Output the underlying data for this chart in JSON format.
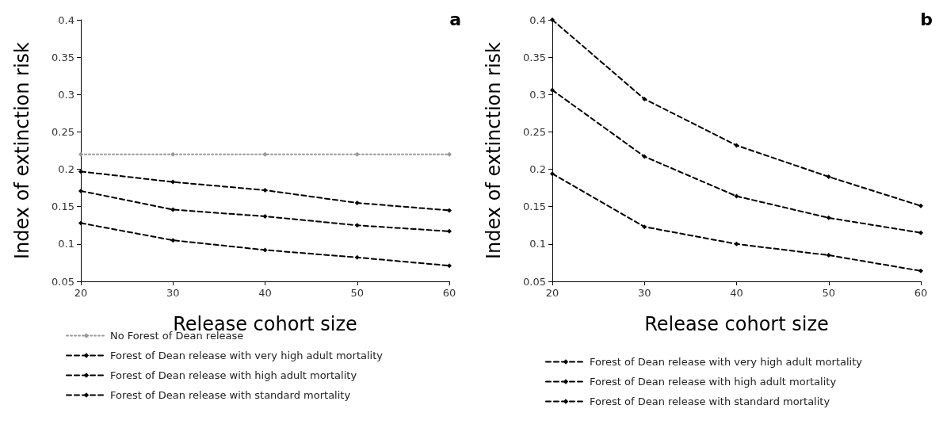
{
  "chart_data": [
    {
      "type": "line",
      "title": "a",
      "xlabel": "Release cohort size",
      "ylabel": "Index of extinction risk",
      "x": [
        20,
        30,
        40,
        50,
        60
      ],
      "xlim": [
        20,
        60
      ],
      "xticks": [
        20,
        30,
        40,
        50,
        60
      ],
      "ylim": [
        0.05,
        0.4
      ],
      "yticks": [
        0.05,
        0.1,
        0.15,
        0.2,
        0.25,
        0.3,
        0.35,
        0.4
      ],
      "grid": false,
      "legend": "bottom",
      "marker": "diamond",
      "series": [
        {
          "name": "No Forest of Dean release",
          "color": "#999999",
          "line_style": "dotted",
          "values": [
            0.22,
            0.22,
            0.22,
            0.22,
            0.22
          ]
        },
        {
          "name": "Forest of Dean release with very high adult mortality",
          "color": "#000000",
          "line_style": "dashed",
          "values": [
            0.197,
            0.183,
            0.172,
            0.155,
            0.145
          ]
        },
        {
          "name": "Forest of Dean release with high adult mortality",
          "color": "#000000",
          "line_style": "dashed",
          "values": [
            0.171,
            0.146,
            0.137,
            0.125,
            0.117
          ]
        },
        {
          "name": "Forest of Dean release with standard mortality",
          "color": "#000000",
          "line_style": "dashed",
          "values": [
            0.128,
            0.105,
            0.092,
            0.082,
            0.071
          ]
        }
      ]
    },
    {
      "type": "line",
      "title": "b",
      "xlabel": "Release cohort size",
      "ylabel": "Index of extinction risk",
      "x": [
        20,
        30,
        40,
        50,
        60
      ],
      "xlim": [
        20,
        60
      ],
      "xticks": [
        20,
        30,
        40,
        50,
        60
      ],
      "ylim": [
        0.05,
        0.4
      ],
      "yticks": [
        0.05,
        0.1,
        0.15,
        0.2,
        0.25,
        0.3,
        0.35,
        0.4
      ],
      "grid": false,
      "legend": "bottom",
      "marker": "diamond",
      "series": [
        {
          "name": "Forest of Dean release with very high adult mortality",
          "color": "#000000",
          "line_style": "dashed",
          "values": [
            0.4,
            0.294,
            0.232,
            0.19,
            0.151
          ]
        },
        {
          "name": "Forest of Dean release with high adult mortality",
          "color": "#000000",
          "line_style": "dashed",
          "values": [
            0.306,
            0.217,
            0.164,
            0.135,
            0.115
          ]
        },
        {
          "name": "Forest of Dean release with standard mortality",
          "color": "#000000",
          "line_style": "dashed",
          "values": [
            0.194,
            0.123,
            0.1,
            0.085,
            0.064
          ]
        }
      ]
    }
  ]
}
